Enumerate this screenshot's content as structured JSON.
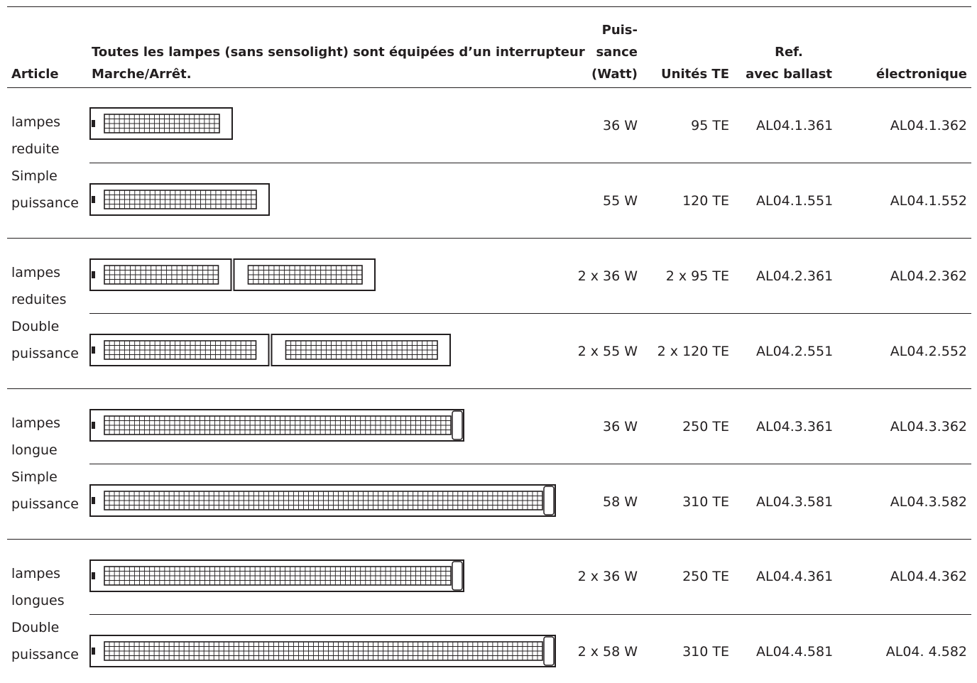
{
  "header": {
    "article": "Article",
    "description_line1": "Toutes les lampes (sans sensolight) sont équipées d’un interrupteur",
    "description_line2": "Marche/Arrêt.",
    "power_line1": "Puis-",
    "power_line2": "sance",
    "power_line3": "(Watt)",
    "units": "Unités TE",
    "ref_line1": "Ref.",
    "ref_line2": "avec ballast",
    "electronic": "électronique"
  },
  "groups": [
    {
      "label_lines": [
        "lampes",
        "reduite",
        "Simple",
        "puissance"
      ]
    },
    {
      "label_lines": [
        "lampes",
        "reduites",
        "Double",
        "puissance"
      ]
    },
    {
      "label_lines": [
        "lampes",
        "longue",
        "Simple",
        "puissance"
      ]
    },
    {
      "label_lines": [
        "lampes",
        "longues",
        "Double",
        "puissance"
      ]
    }
  ],
  "rows": [
    {
      "power": "36 W",
      "units": "95 TE",
      "ref_ballast": "AL04.1.361",
      "ref_electronic": "AL04.1.362",
      "lamp_icon": "short-single-lamp"
    },
    {
      "power": "55 W",
      "units": "120 TE",
      "ref_ballast": "AL04.1.551",
      "ref_electronic": "AL04.1.552",
      "lamp_icon": "medium-single-lamp"
    },
    {
      "power": "2 x 36 W",
      "units": "2 x 95 TE",
      "ref_ballast": "AL04.2.361",
      "ref_electronic": "AL04.2.362",
      "lamp_icon": "short-double-lamp"
    },
    {
      "power": "2 x 55 W",
      "units": "2 x 120 TE",
      "ref_ballast": "AL04.2.551",
      "ref_electronic": "AL04.2.552",
      "lamp_icon": "medium-double-lamp"
    },
    {
      "power": "36 W",
      "units": "250 TE",
      "ref_ballast": "AL04.3.361",
      "ref_electronic": "AL04.3.362",
      "lamp_icon": "long-lamp"
    },
    {
      "power": "58 W",
      "units": "310 TE",
      "ref_ballast": "AL04.3.581",
      "ref_electronic": "AL04.3.582",
      "lamp_icon": "extra-long-lamp"
    },
    {
      "power": "2 x 36 W",
      "units": "250 TE",
      "ref_ballast": "AL04.4.361",
      "ref_electronic": "AL04.4.362",
      "lamp_icon": "long-lamp"
    },
    {
      "power": "2 x 58 W",
      "units": "310 TE",
      "ref_ballast": "AL04.4.581",
      "ref_electronic": "AL04. 4.582",
      "lamp_icon": "extra-long-lamp"
    }
  ]
}
